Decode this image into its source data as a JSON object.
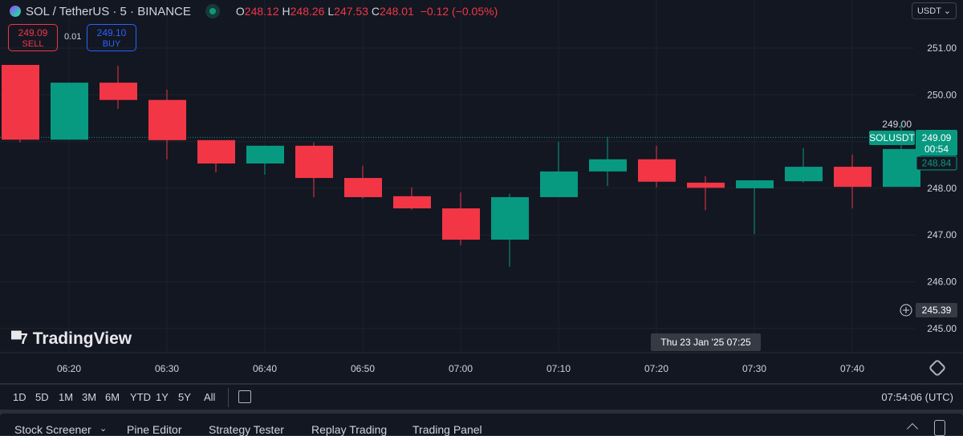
{
  "header": {
    "symbol": "SOL / TetherUS · 5 · BINANCE",
    "o_label": "O",
    "o": "248.12",
    "h_label": "H",
    "h": "248.26",
    "l_label": "L",
    "l": "247.53",
    "c_label": "C",
    "c": "248.01",
    "change": "−0.12 (−0.05%)",
    "market_status_color": "#089981"
  },
  "trade": {
    "sell_price": "249.09",
    "sell_label": "SELL",
    "spread": "0.01",
    "buy_price": "249.10",
    "buy_label": "BUY"
  },
  "currency": "USDT ⌄",
  "watermark": "TradingView",
  "price_axis": {
    "ticks": [
      "251.00",
      "250.00",
      "249.00",
      "248.00",
      "247.00",
      "246.00",
      "245.00"
    ],
    "symbol_tag": "SOLUSDT",
    "last_price": "249.09",
    "countdown": "00:54",
    "secondary_price": "248.84",
    "crosshair_price": "245.39"
  },
  "time_axis": {
    "ticks": [
      "06:20",
      "06:30",
      "06:40",
      "06:50",
      "07:00",
      "07:10",
      "07:20",
      "07:30",
      "07:40"
    ],
    "crosshair_label": "Thu 23 Jan '25   07:25"
  },
  "colors": {
    "up": "#089981",
    "down": "#f23645",
    "background": "#131722"
  },
  "chart_data": {
    "type": "candlestick",
    "times": [
      "06:15",
      "06:20",
      "06:25",
      "06:30",
      "06:35",
      "06:40",
      "06:45",
      "06:50",
      "06:55",
      "07:00",
      "07:05",
      "07:10",
      "07:15",
      "07:20",
      "07:25",
      "07:30",
      "07:35",
      "07:40",
      "07:45"
    ],
    "open": [
      250.64,
      249.04,
      250.26,
      249.89,
      249.03,
      248.53,
      248.91,
      248.22,
      247.83,
      247.57,
      246.9,
      247.81,
      248.36,
      248.62,
      248.12,
      248.0,
      248.15,
      248.46,
      248.03
    ],
    "high": [
      250.64,
      250.26,
      250.62,
      250.11,
      249.03,
      248.91,
      248.98,
      248.48,
      248.02,
      247.91,
      247.88,
      248.99,
      249.1,
      248.91,
      248.26,
      248.17,
      248.86,
      248.72,
      249.4
    ],
    "low": [
      248.98,
      249.04,
      249.7,
      248.62,
      248.34,
      248.29,
      247.81,
      247.78,
      247.54,
      246.78,
      246.32,
      247.81,
      248.05,
      248.02,
      247.53,
      247.02,
      248.12,
      247.57,
      248.03
    ],
    "close": [
      249.04,
      250.26,
      249.89,
      249.03,
      248.53,
      248.91,
      248.22,
      247.81,
      247.57,
      246.9,
      247.81,
      248.36,
      248.62,
      248.14,
      248.01,
      248.17,
      248.46,
      248.03,
      248.84
    ],
    "ylim": [
      244.7,
      251.7
    ]
  },
  "toolbar": {
    "ranges": [
      "1D",
      "5D",
      "1M",
      "3M",
      "6M",
      "YTD",
      "1Y",
      "5Y",
      "All"
    ],
    "clock": "07:54:06 (UTC)"
  },
  "panel": {
    "tabs": [
      "Stock Screener",
      "Pine Editor",
      "Strategy Tester",
      "Replay Trading",
      "Trading Panel"
    ],
    "screener_chevron": "⌄"
  }
}
